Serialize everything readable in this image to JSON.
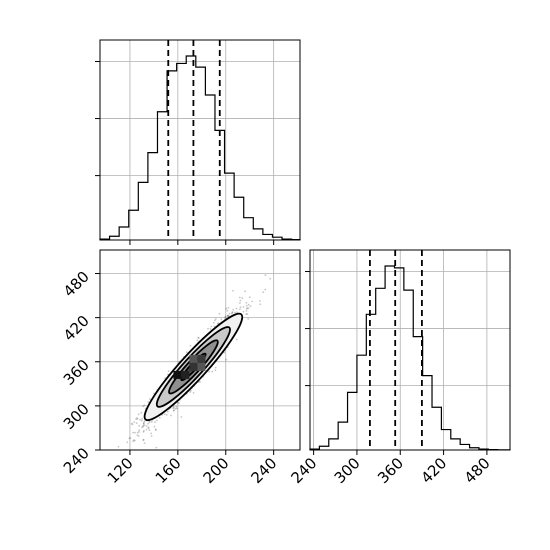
{
  "chart_data": [
    {
      "type": "histogram",
      "panel": "top-left",
      "xlim": [
        95,
        262
      ],
      "xticks": [
        120,
        160,
        200,
        240
      ],
      "bin_edges": [
        95,
        103,
        111,
        119,
        127,
        135,
        143,
        151,
        159,
        167,
        175,
        183,
        191,
        199,
        207,
        215,
        223,
        231,
        239,
        247,
        255,
        262
      ],
      "counts": [
        0.005,
        0.02,
        0.07,
        0.16,
        0.31,
        0.47,
        0.69,
        0.91,
        0.95,
        0.99,
        0.93,
        0.78,
        0.59,
        0.36,
        0.23,
        0.12,
        0.06,
        0.03,
        0.015,
        0.005,
        0.002
      ],
      "quantiles": [
        152,
        173,
        195
      ],
      "grid": true
    },
    {
      "type": "scatter",
      "panel": "bottom-left",
      "xlim": [
        95,
        262
      ],
      "ylim": [
        240,
        512
      ],
      "xticks": [
        120,
        160,
        200,
        240
      ],
      "xtick_labels": [
        "120",
        "160",
        "200",
        "240"
      ],
      "yticks": [
        240,
        300,
        360,
        420,
        480
      ],
      "ytick_labels": [
        "240",
        "300",
        "360",
        "420",
        "480"
      ],
      "center": [
        173,
        353
      ],
      "std": [
        20,
        38
      ],
      "correlation": 0.94,
      "levels": [
        0.5,
        1.0,
        1.5,
        2.0
      ],
      "grid": true
    },
    {
      "type": "histogram",
      "panel": "bottom-right",
      "xlim": [
        235,
        512
      ],
      "xticks": [
        240,
        300,
        360,
        420,
        480
      ],
      "xtick_labels": [
        "240",
        "300",
        "360",
        "420",
        "480"
      ],
      "bin_edges": [
        235,
        248,
        261,
        274,
        287,
        300,
        313,
        326,
        339,
        352,
        365,
        378,
        391,
        404,
        417,
        430,
        443,
        456,
        469,
        482,
        495,
        512
      ],
      "counts": [
        0.005,
        0.02,
        0.06,
        0.15,
        0.31,
        0.51,
        0.73,
        0.87,
        0.99,
        0.98,
        0.86,
        0.61,
        0.4,
        0.23,
        0.11,
        0.06,
        0.03,
        0.012,
        0.005,
        0.002,
        0.001
      ],
      "quantiles": [
        318,
        353,
        390
      ],
      "grid": true
    }
  ]
}
